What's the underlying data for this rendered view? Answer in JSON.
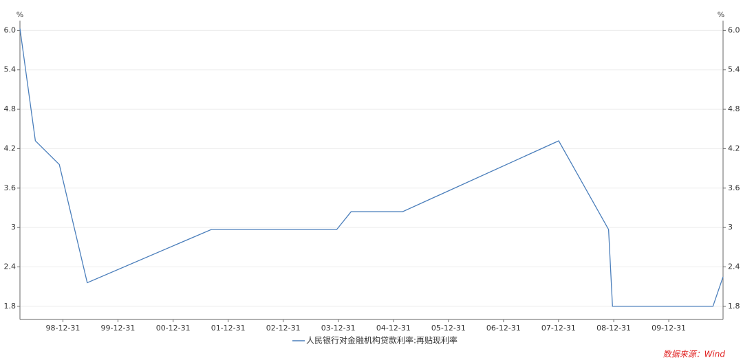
{
  "chart_data": {
    "type": "line",
    "y_unit": "%",
    "y2_unit": "%",
    "x": [
      "98-03-21",
      "98-07-01",
      "98-12-07",
      "99-06-10",
      "01-09-11",
      "03-12-21",
      "04-03-25",
      "05-03-01",
      "08-01-01",
      "08-11-27",
      "08-12-23",
      "10-10-20",
      "10-12-26"
    ],
    "series": [
      {
        "name": "人民银行对金融机构贷款利率:再贴现利率",
        "color": "#4a7ebb",
        "values": [
          6.03,
          4.32,
          3.96,
          2.16,
          2.97,
          2.97,
          3.24,
          3.24,
          4.32,
          2.97,
          1.8,
          1.8,
          2.25
        ]
      }
    ],
    "xlim": [
      "98-03-21",
      "10-12-26"
    ],
    "xticks": [
      "98-12-31",
      "99-12-31",
      "00-12-31",
      "01-12-31",
      "02-12-31",
      "03-12-31",
      "04-12-31",
      "05-12-31",
      "06-12-31",
      "07-12-31",
      "08-12-31",
      "09-12-31"
    ],
    "ylim": [
      1.6,
      6.15
    ],
    "yticks": [
      1.8,
      2.4,
      3.0,
      3.6,
      4.2,
      4.8,
      5.4,
      {
        "value": 6,
        "label": "6.0"
      }
    ],
    "y2lim": [
      1.6,
      6.15
    ],
    "y2ticks": [
      1.8,
      2.4,
      3.0,
      3.6,
      4.2,
      4.8,
      5.4,
      {
        "value": 6,
        "label": "6.0"
      }
    ],
    "grid": true,
    "legend": "bottom",
    "source": "数据来源：Wind"
  }
}
